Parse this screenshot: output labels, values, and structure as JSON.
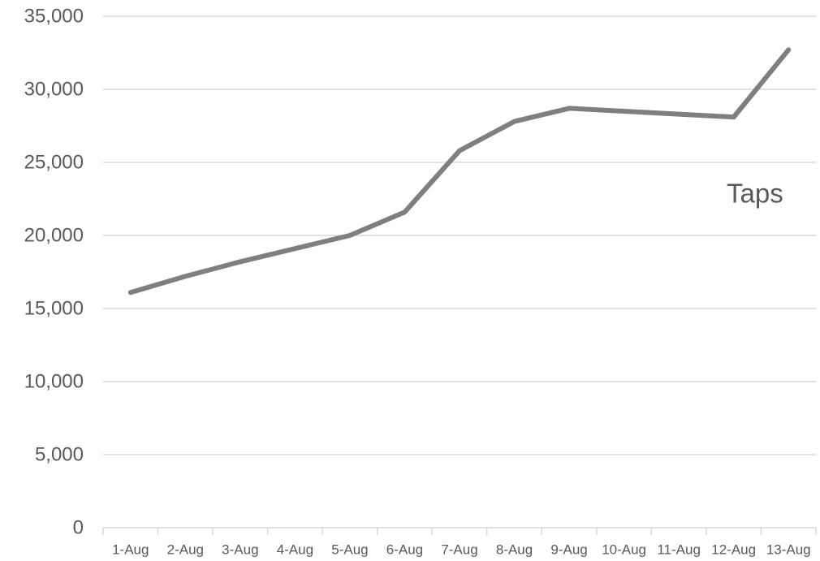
{
  "chart_data": {
    "type": "line",
    "title": "",
    "xlabel": "",
    "ylabel": "",
    "categories": [
      "1-Aug",
      "2-Aug",
      "3-Aug",
      "4-Aug",
      "5-Aug",
      "6-Aug",
      "7-Aug",
      "8-Aug",
      "9-Aug",
      "10-Aug",
      "11-Aug",
      "12-Aug",
      "13-Aug"
    ],
    "ylim": [
      0,
      35000
    ],
    "y_ticks": [
      0,
      5000,
      10000,
      15000,
      20000,
      25000,
      30000,
      35000
    ],
    "y_tick_labels": [
      "0",
      "5,000",
      "10,000",
      "15,000",
      "20,000",
      "25,000",
      "30,000",
      "35,000"
    ],
    "grid": true,
    "legend": "none",
    "series": [
      {
        "name": "Taps",
        "color": "#7f7f7f",
        "values": [
          16100,
          17200,
          18200,
          19100,
          20000,
          21600,
          25800,
          27800,
          28700,
          28500,
          28300,
          28100,
          32700
        ]
      }
    ]
  }
}
